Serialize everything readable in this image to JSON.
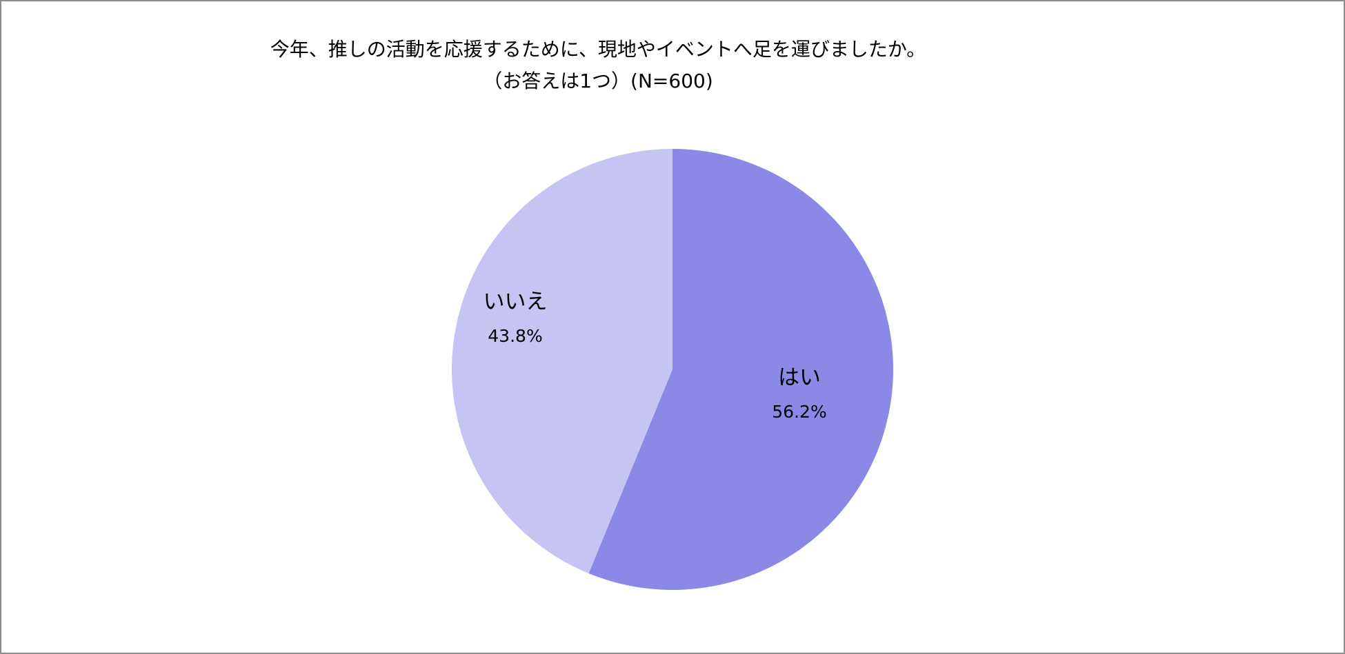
{
  "chart_data": {
    "type": "pie",
    "title": "今年、推しの活動を応援するために、現地やイベントへ足を運びましたか。",
    "subtitle": "（お答えは1つ）(N=600)",
    "slices": [
      {
        "label": "はい",
        "value": 56.2,
        "value_label": "56.2%",
        "color": "#8b89e6"
      },
      {
        "label": "いいえ",
        "value": 43.8,
        "value_label": "43.8%",
        "color": "#c5c4f3"
      }
    ],
    "start": "12 o'clock",
    "direction": "clockwise",
    "legend": "none"
  }
}
